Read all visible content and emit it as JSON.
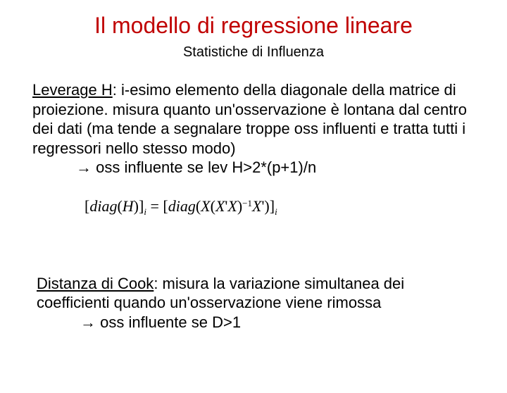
{
  "title": {
    "text": "Il modello di regressione lineare",
    "color": "#c00000",
    "fontsize": 32,
    "weight": "normal"
  },
  "subtitle": {
    "text": "Statistiche di Influenza",
    "color": "#000000",
    "fontsize": 20,
    "weight": "normal"
  },
  "leverage": {
    "label": "Leverage H",
    "body": ": i-esimo elemento della diagonale della matrice di proiezione. misura quanto un'osservazione è lontana dal centro dei dati (ma tende a segnalare troppe oss influenti e tratta tutti i regressori nello stesso modo)",
    "arrow": "→",
    "rule": " oss influente se lev H>2*(p+1)/n",
    "fontsize": 22,
    "color": "#000000"
  },
  "formula": {
    "lhs_open": "[",
    "lhs_fn": "diag",
    "lhs_arg_open": "(",
    "lhs_arg": "H",
    "lhs_arg_close": ")",
    "lhs_close": "]",
    "lhs_sub": "i",
    "eq": " = ",
    "rhs_open": "[",
    "rhs_fn": "diag",
    "rhs_arg_open": "(",
    "rhs_X1": "X",
    "rhs_paren_open": "(",
    "rhs_X2": "X",
    "rhs_prime1": "'",
    "rhs_X3": "X",
    "rhs_paren_close": ")",
    "rhs_exp": "−1",
    "rhs_X4": "X",
    "rhs_prime2": "'",
    "rhs_arg_close": ")",
    "rhs_close": "]",
    "rhs_sub": "i",
    "fontsize": 21,
    "color": "#000000"
  },
  "cook": {
    "label": "Distanza di Cook",
    "body": ": misura la variazione simultanea dei coefficienti quando un'osservazione viene rimossa",
    "arrow": "→",
    "rule": " oss influente se D>1",
    "fontsize": 22,
    "color": "#000000"
  },
  "background_color": "#ffffff"
}
